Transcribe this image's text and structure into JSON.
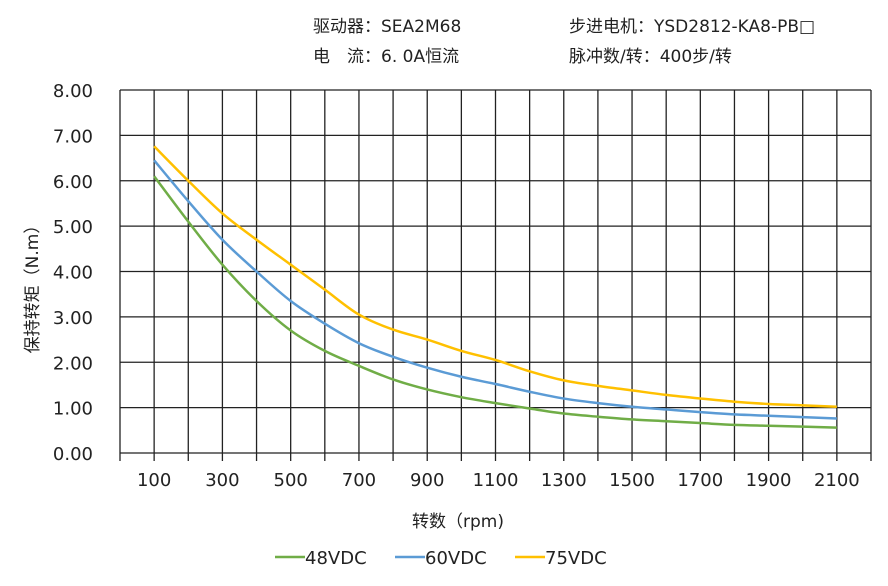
{
  "header": {
    "driver": "驱动器：SEA2M68",
    "motor": "步进电机：YSD2812-KA8-PB□",
    "current": "电　流：6. 0A恒流",
    "pulses": "脉冲数/转：400步/转"
  },
  "chart_data": {
    "type": "line",
    "title": "",
    "xlabel": "转数（rpm)",
    "ylabel": "保持转矩（N.m）",
    "xlim": [
      0,
      2200
    ],
    "ylim": [
      0,
      8
    ],
    "grid": true,
    "legend_position": "bottom",
    "x_ticks": [
      "100",
      "300",
      "500",
      "700",
      "900",
      "1100",
      "1300",
      "1500",
      "1700",
      "1900",
      "2100"
    ],
    "y_ticks": [
      "0.00",
      "1.00",
      "2.00",
      "3.00",
      "4.00",
      "5.00",
      "6.00",
      "7.00",
      "8.00"
    ],
    "x": [
      100,
      200,
      300,
      400,
      500,
      600,
      700,
      800,
      900,
      1000,
      1100,
      1200,
      1300,
      1400,
      1500,
      1600,
      1700,
      1800,
      1900,
      2000,
      2100
    ],
    "series": [
      {
        "name": "48VDC",
        "color": "#70AD47",
        "values": [
          6.1,
          5.1,
          4.15,
          3.35,
          2.7,
          2.25,
          1.92,
          1.62,
          1.4,
          1.23,
          1.1,
          0.98,
          0.87,
          0.8,
          0.74,
          0.7,
          0.66,
          0.62,
          0.6,
          0.58,
          0.56
        ]
      },
      {
        "name": "60VDC",
        "color": "#5B9BD5",
        "values": [
          6.45,
          5.55,
          4.7,
          4.0,
          3.35,
          2.85,
          2.42,
          2.12,
          1.88,
          1.68,
          1.52,
          1.35,
          1.2,
          1.1,
          1.02,
          0.96,
          0.9,
          0.85,
          0.82,
          0.79,
          0.76
        ]
      },
      {
        "name": "75VDC",
        "color": "#FFC000",
        "values": [
          6.76,
          6.0,
          5.28,
          4.7,
          4.15,
          3.6,
          3.05,
          2.72,
          2.5,
          2.25,
          2.05,
          1.8,
          1.6,
          1.48,
          1.38,
          1.28,
          1.2,
          1.13,
          1.08,
          1.05,
          1.02
        ]
      }
    ]
  }
}
